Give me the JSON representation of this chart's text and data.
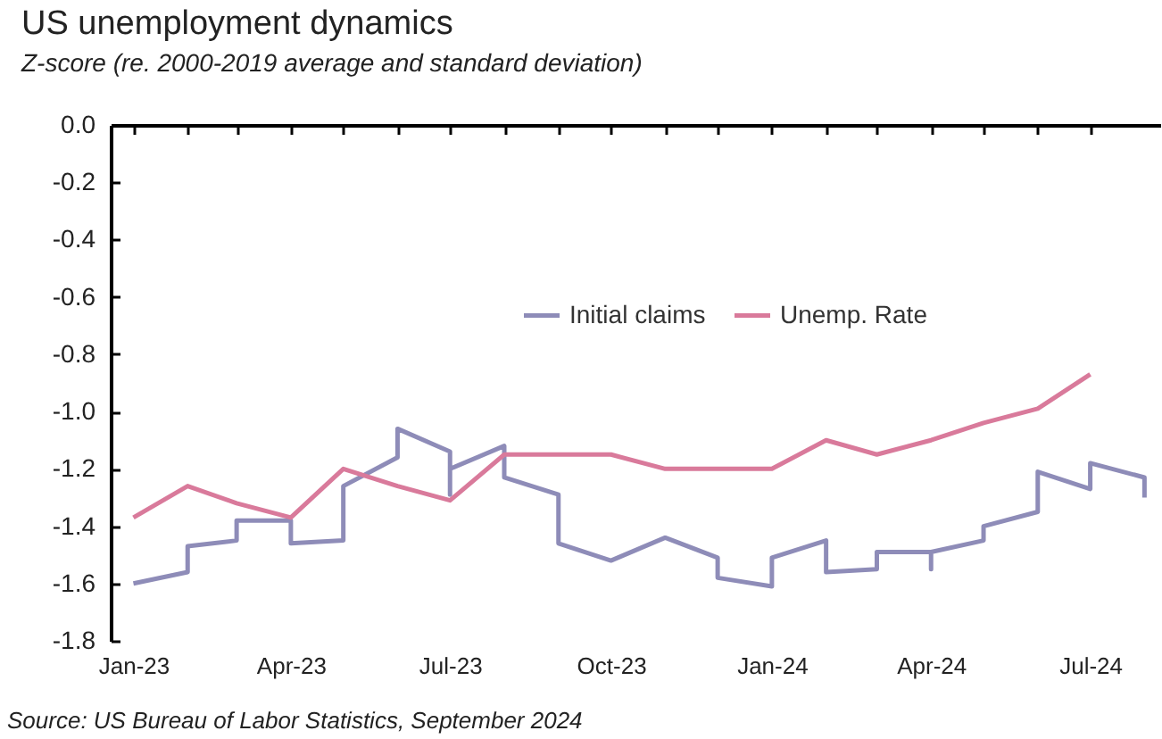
{
  "chart_data": {
    "type": "line",
    "title": "US unemployment dynamics",
    "subtitle": "Z-score (re. 2000-2019 average and standard deviation)",
    "annotations": [
      "Source: US Bureau of Labor Statistics, September 2024"
    ],
    "x": [
      "2023-01",
      "2023-02",
      "2023-03",
      "2023-04",
      "2023-05",
      "2023-06",
      "2023-07",
      "2023-08",
      "2023-09",
      "2023-10",
      "2023-11",
      "2023-12",
      "2024-01",
      "2024-02",
      "2024-03",
      "2024-04",
      "2024-05",
      "2024-06",
      "2024-07"
    ],
    "series": [
      {
        "name": "Initial claims",
        "color": "#8e8cb8",
        "x": [
          "2023-01",
          "2023-02",
          "2023-02",
          "2023-03",
          "2023-03",
          "2023-04",
          "2023-04",
          "2023-05",
          "2023-05",
          "2023-06",
          "2023-06",
          "2023-07",
          "2023-07",
          "2023-07",
          "2023-08",
          "2023-08",
          "2023-09",
          "2023-09",
          "2023-10",
          "2023-11",
          "2023-12",
          "2023-12",
          "2024-01",
          "2024-01",
          "2024-02",
          "2024-02",
          "2024-03",
          "2024-03",
          "2024-04",
          "2024-04",
          "2024-04",
          "2024-05",
          "2024-05",
          "2024-06",
          "2024-06",
          "2024-07",
          "2024-07",
          "2024-08",
          "2024-08"
        ],
        "values": [
          -1.6,
          -1.56,
          -1.47,
          -1.45,
          -1.38,
          -1.38,
          -1.46,
          -1.45,
          -1.26,
          -1.16,
          -1.06,
          -1.14,
          -1.29,
          -1.2,
          -1.12,
          -1.23,
          -1.29,
          -1.46,
          -1.52,
          -1.44,
          -1.51,
          -1.58,
          -1.61,
          -1.51,
          -1.45,
          -1.56,
          -1.55,
          -1.49,
          -1.49,
          -1.55,
          -1.49,
          -1.45,
          -1.4,
          -1.35,
          -1.21,
          -1.27,
          -1.18,
          -1.23,
          -1.3
        ]
      },
      {
        "name": "Unemp. Rate",
        "color": "#d97a9b",
        "values": [
          -1.37,
          -1.26,
          -1.32,
          -1.37,
          -1.2,
          -1.26,
          -1.31,
          -1.15,
          -1.15,
          -1.15,
          -1.2,
          -1.2,
          -1.2,
          -1.1,
          -1.15,
          -1.1,
          -1.04,
          -0.99,
          -0.87
        ]
      }
    ],
    "xlim": [
      "2022-12-19",
      "2024-08-10"
    ],
    "xticks": [
      {
        "value": "2023-01",
        "label": "Jan-23"
      },
      {
        "value": "2023-02",
        "label": null
      },
      {
        "value": "2023-03",
        "label": null
      },
      {
        "value": "2023-04",
        "label": "Apr-23"
      },
      {
        "value": "2023-05",
        "label": null
      },
      {
        "value": "2023-06",
        "label": null
      },
      {
        "value": "2023-07",
        "label": "Jul-23"
      },
      {
        "value": "2023-08",
        "label": null
      },
      {
        "value": "2023-09",
        "label": null
      },
      {
        "value": "2023-10",
        "label": "Oct-23"
      },
      {
        "value": "2023-11",
        "label": null
      },
      {
        "value": "2023-12",
        "label": null
      },
      {
        "value": "2024-01",
        "label": "Jan-24"
      },
      {
        "value": "2024-02",
        "label": null
      },
      {
        "value": "2024-03",
        "label": null
      },
      {
        "value": "2024-04",
        "label": "Apr-24"
      },
      {
        "value": "2024-05",
        "label": null
      },
      {
        "value": "2024-06",
        "label": null
      },
      {
        "value": "2024-07",
        "label": "Jul-24"
      }
    ],
    "ylim": [
      -1.8,
      0
    ],
    "yticks": [
      {
        "value": 0,
        "label": "0.0"
      },
      -0.2,
      -0.4,
      -0.6,
      -0.8,
      {
        "value": -1,
        "label": "-1.0"
      },
      -1.2,
      -1.4,
      -1.6,
      -1.8
    ],
    "grid": false,
    "legend": "top right",
    "marker": "none",
    "line_style": "solid"
  }
}
